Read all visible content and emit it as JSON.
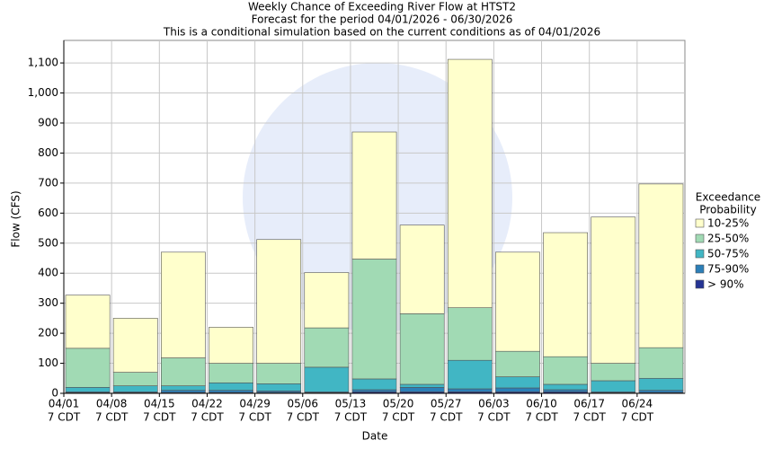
{
  "chart_data": {
    "type": "stacked_bar",
    "title": "Weekly Chance of Exceeding River Flow at HTST2",
    "subtitle": [
      "Forecast for the period 04/01/2026 - 06/30/2026",
      "This is a conditional simulation based on the current conditions as of 04/01/2026"
    ],
    "x_label": "Date",
    "y_label": "Flow (CFS)",
    "categories": [
      "04/01",
      "04/08",
      "04/15",
      "04/22",
      "04/29",
      "05/06",
      "05/13",
      "05/20",
      "05/27",
      "06/03",
      "06/10",
      "06/17",
      "06/24"
    ],
    "category_sublabels": [
      "7 CDT",
      "7 CDT",
      "7 CDT",
      "7 CDT",
      "7 CDT",
      "7 CDT",
      "7 CDT",
      "7 CDT",
      "7 CDT",
      "7 CDT",
      "7 CDT",
      "7 CDT",
      "7 CDT"
    ],
    "legend_title": [
      "Exceedance",
      "Probability"
    ],
    "series": [
      {
        "name": "> 90%",
        "color": "#253494",
        "values": [
          2,
          2,
          3,
          3,
          3,
          2,
          5,
          5,
          5,
          5,
          5,
          2,
          3
        ]
      },
      {
        "name": "75-90%",
        "color": "#2c7fb8",
        "values": [
          3,
          3,
          7,
          7,
          5,
          3,
          7,
          15,
          10,
          13,
          7,
          3,
          7
        ]
      },
      {
        "name": "50-75%",
        "color": "#41b6c4",
        "values": [
          15,
          20,
          15,
          25,
          24,
          82,
          36,
          10,
          95,
          37,
          18,
          37,
          40
        ]
      },
      {
        "name": "25-50%",
        "color": "#a1dab4",
        "values": [
          130,
          45,
          93,
          65,
          68,
          131,
          399,
          235,
          175,
          85,
          92,
          58,
          102
        ]
      },
      {
        "name": "10-25%",
        "color": "#ffffcc",
        "values": [
          177,
          180,
          352,
          120,
          412,
          184,
          423,
          295,
          827,
          330,
          413,
          487,
          545
        ]
      }
    ],
    "ylim": [
      0,
      1175
    ],
    "yticks": [
      0,
      100,
      200,
      300,
      400,
      500,
      600,
      700,
      800,
      900,
      {
        "value": 1000,
        "label": "1,000"
      },
      {
        "value": 1100,
        "label": "1,100"
      }
    ],
    "grid": true
  }
}
